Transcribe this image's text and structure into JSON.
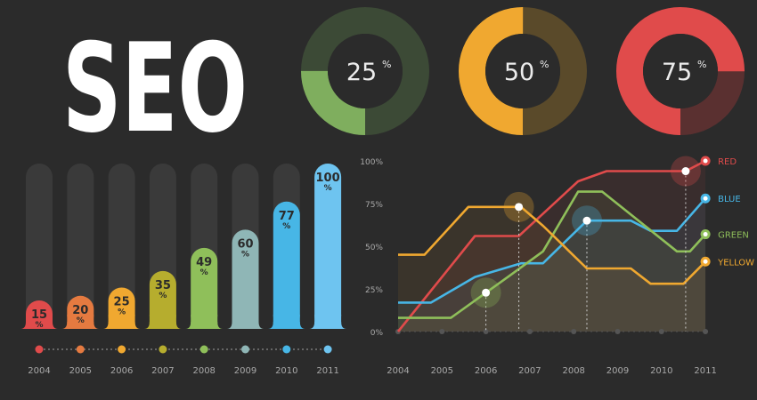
{
  "title": "SEO",
  "colors": {
    "background": "#2b2b2b",
    "track": "#3a3a3a",
    "axis_text": "#a9a9a9",
    "dot_line": "#7a7a7a",
    "red": "#e04b4b",
    "blue": "#47b6e6",
    "green": "#8fbf5a",
    "yellow": "#f0a830",
    "label_text": "#2b2b2b"
  },
  "donuts": [
    {
      "value": 25,
      "label": "25",
      "unit": "%",
      "color": "#7fae5e",
      "rest_color": "#3c4a36"
    },
    {
      "value": 50,
      "label": "50",
      "unit": "%",
      "color": "#f0a830",
      "rest_color": "#5a4a2a"
    },
    {
      "value": 75,
      "label": "75",
      "unit": "%",
      "color": "#e04b4b",
      "rest_color": "#5a3030"
    }
  ],
  "chart_data": [
    {
      "type": "bar",
      "categories": [
        "2004",
        "2005",
        "2006",
        "2007",
        "2008",
        "2009",
        "2010",
        "2011"
      ],
      "values": [
        15,
        20,
        25,
        35,
        49,
        60,
        77,
        100
      ],
      "value_unit": "%",
      "ylim": [
        0,
        100
      ],
      "bar_colors": [
        "#e04b4b",
        "#e57a40",
        "#f0a830",
        "#b6ad2e",
        "#8fbf5a",
        "#8fb6b6",
        "#47b6e6",
        "#6ec4f0"
      ]
    },
    {
      "type": "line",
      "x": [
        "2004",
        "2005",
        "2006",
        "2007",
        "2008",
        "2009",
        "2010",
        "2011"
      ],
      "y_ticks": [
        "0%",
        "25%",
        "50%",
        "75%",
        "100%"
      ],
      "ylim": [
        0,
        100
      ],
      "series": [
        {
          "name": "RED",
          "color": "#e04b4b",
          "points": [
            [
              0,
              0
            ],
            [
              1.75,
              56
            ],
            [
              2.75,
              56
            ],
            [
              4.1,
              88
            ],
            [
              4.75,
              94
            ],
            [
              6.55,
              94
            ],
            [
              7,
              100
            ]
          ],
          "highlight": 6.55
        },
        {
          "name": "BLUE",
          "color": "#47b6e6",
          "points": [
            [
              0,
              17
            ],
            [
              0.75,
              17
            ],
            [
              1.75,
              32
            ],
            [
              2.8,
              40
            ],
            [
              3.3,
              40
            ],
            [
              4.3,
              65
            ],
            [
              5.3,
              65
            ],
            [
              5.75,
              59
            ],
            [
              6.35,
              59
            ],
            [
              7,
              78
            ]
          ],
          "highlight": 4.3
        },
        {
          "name": "GREEN",
          "color": "#8fbf5a",
          "points": [
            [
              0,
              8
            ],
            [
              1.2,
              8
            ],
            [
              2.5,
              32
            ],
            [
              3.3,
              47
            ],
            [
              4.1,
              82
            ],
            [
              4.65,
              82
            ],
            [
              6.35,
              47
            ],
            [
              6.65,
              47
            ],
            [
              7,
              57
            ]
          ],
          "highlight": 2.0
        },
        {
          "name": "YELLOW",
          "color": "#f0a830",
          "points": [
            [
              0,
              45
            ],
            [
              0.6,
              45
            ],
            [
              1.6,
              73
            ],
            [
              2.8,
              73
            ],
            [
              3.3,
              62
            ],
            [
              4.3,
              37
            ],
            [
              5.3,
              37
            ],
            [
              5.75,
              28
            ],
            [
              6.5,
              28
            ],
            [
              7,
              41
            ]
          ],
          "highlight": 2.75
        }
      ]
    }
  ]
}
